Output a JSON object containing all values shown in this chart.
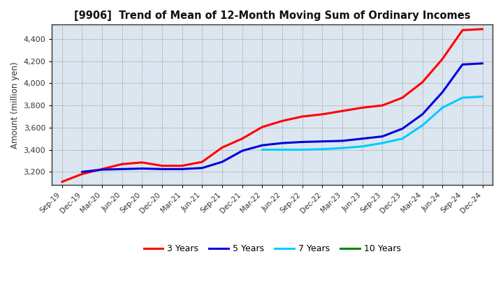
{
  "title": "[9906]  Trend of Mean of 12-Month Moving Sum of Ordinary Incomes",
  "ylabel": "Amount (million yen)",
  "background_color": "#ffffff",
  "plot_bg_color": "#dce6f0",
  "grid_color": "#888888",
  "x_labels": [
    "Sep-19",
    "Dec-19",
    "Mar-20",
    "Jun-20",
    "Sep-20",
    "Dec-20",
    "Mar-21",
    "Jun-21",
    "Sep-21",
    "Dec-21",
    "Mar-22",
    "Jun-22",
    "Sep-22",
    "Dec-22",
    "Mar-23",
    "Jun-23",
    "Sep-23",
    "Dec-23",
    "Mar-24",
    "Jun-24",
    "Sep-24",
    "Dec-24"
  ],
  "ylim": [
    3080,
    4530
  ],
  "yticks": [
    3200,
    3400,
    3600,
    3800,
    4000,
    4200,
    4400
  ],
  "series": {
    "3 Years": {
      "color": "#ff0000",
      "values": [
        3110,
        3180,
        3225,
        3270,
        3285,
        3255,
        3255,
        3290,
        3420,
        3500,
        3605,
        3660,
        3700,
        3720,
        3750,
        3780,
        3800,
        3870,
        4010,
        4220,
        4480,
        4490
      ]
    },
    "5 Years": {
      "color": "#0000dd",
      "values": [
        null,
        3200,
        3220,
        3225,
        3230,
        3225,
        3225,
        3235,
        3290,
        3390,
        3440,
        3460,
        3470,
        3475,
        3480,
        3500,
        3520,
        3590,
        3720,
        3920,
        4170,
        4180
      ]
    },
    "7 Years": {
      "color": "#00ccff",
      "values": [
        null,
        null,
        null,
        null,
        null,
        null,
        null,
        null,
        null,
        null,
        3400,
        3400,
        3400,
        3405,
        3415,
        3430,
        3460,
        3500,
        3620,
        3780,
        3870,
        3880
      ]
    },
    "10 Years": {
      "color": "#008800",
      "values": [
        null,
        null,
        null,
        null,
        null,
        null,
        null,
        null,
        null,
        null,
        null,
        null,
        null,
        null,
        null,
        null,
        null,
        null,
        null,
        null,
        null,
        null
      ]
    }
  },
  "legend": {
    "labels": [
      "3 Years",
      "5 Years",
      "7 Years",
      "10 Years"
    ],
    "colors": [
      "#ff0000",
      "#0000dd",
      "#00ccff",
      "#008800"
    ]
  }
}
